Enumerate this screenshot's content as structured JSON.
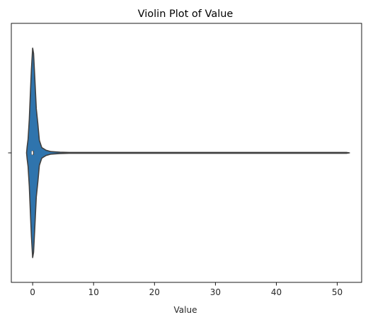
{
  "chart_data": {
    "type": "violin",
    "title": "Violin Plot of Value",
    "xlabel": "Value",
    "ylabel": "",
    "xlim": [
      -3.5,
      54.0
    ],
    "xticks": [
      0,
      10,
      20,
      30,
      40,
      50
    ],
    "yticks": [
      ""
    ],
    "grid": false,
    "orientation": "horizontal",
    "series": [
      {
        "fill_color": "#2f74ad",
        "edge_color": "#3f3f3f",
        "density_profile": [
          [
            -1.0,
            0.0
          ],
          [
            -0.9,
            0.06
          ],
          [
            -0.75,
            0.13
          ],
          [
            -0.55,
            0.32
          ],
          [
            -0.35,
            0.6
          ],
          [
            -0.2,
            0.8
          ],
          [
            0.0,
            1.0
          ],
          [
            0.15,
            0.95
          ],
          [
            0.35,
            0.72
          ],
          [
            0.6,
            0.42
          ],
          [
            0.85,
            0.28
          ],
          [
            1.1,
            0.12
          ],
          [
            1.5,
            0.05
          ],
          [
            2.2,
            0.025
          ],
          [
            3.0,
            0.012
          ],
          [
            4.5,
            0.006
          ],
          [
            6.0,
            0.004
          ],
          [
            15.0,
            0.004
          ],
          [
            30.0,
            0.004
          ],
          [
            45.0,
            0.004
          ],
          [
            51.5,
            0.004
          ],
          [
            52.0,
            0.0
          ]
        ],
        "box": {
          "q1": -0.2,
          "median": -0.05,
          "q3": 0.2
        }
      }
    ]
  }
}
